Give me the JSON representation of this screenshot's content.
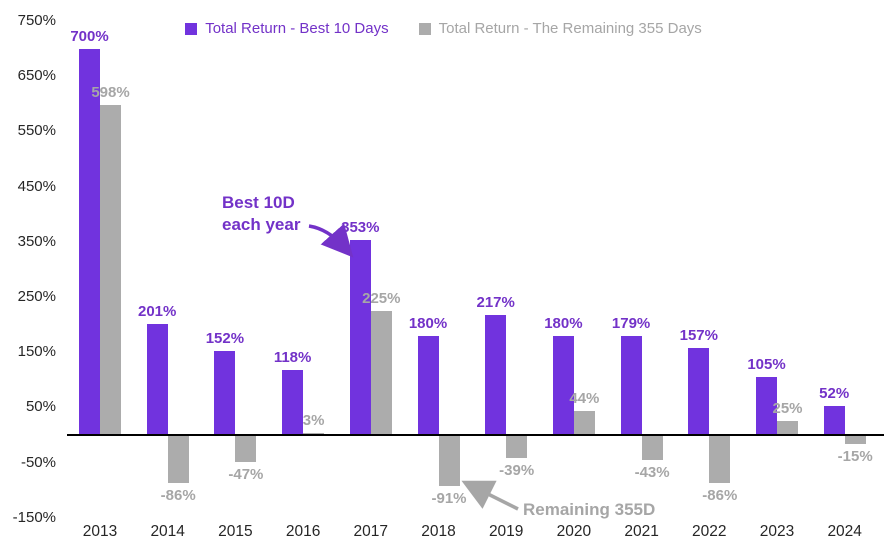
{
  "chart_data": {
    "type": "bar",
    "title": "",
    "categories": [
      "2013",
      "2014",
      "2015",
      "2016",
      "2017",
      "2018",
      "2019",
      "2020",
      "2021",
      "2022",
      "2023",
      "2024"
    ],
    "series": [
      {
        "name": "Total Return - Best 10 Days",
        "color": "#7133DE",
        "label_color": "#7332C8",
        "values": [
          700,
          201,
          152,
          118,
          353,
          180,
          217,
          180,
          179,
          157,
          105,
          52
        ]
      },
      {
        "name": "Total Return - The Remaining 355 Days",
        "color": "#ACACAC",
        "label_color": "#A6A6A6",
        "values": [
          598,
          -86,
          -47,
          3,
          225,
          -91,
          -39,
          44,
          -43,
          -86,
          25,
          -15
        ]
      }
    ],
    "value_axis": {
      "unit": "%",
      "ticks": [
        750,
        650,
        550,
        450,
        350,
        250,
        150,
        50,
        -50,
        -150
      ],
      "min": -150,
      "max": 750
    },
    "grid": false,
    "legend_position": "top",
    "data_labels": true,
    "annotations": [
      {
        "text_lines": [
          "Best 10D",
          "each year"
        ],
        "color": "#7332C8",
        "target": "2017 best-10-days bar"
      },
      {
        "text_lines": [
          "Remaining 355D"
        ],
        "color": "#A6A6A6",
        "target": "2018 remaining-355-days bar"
      }
    ]
  }
}
